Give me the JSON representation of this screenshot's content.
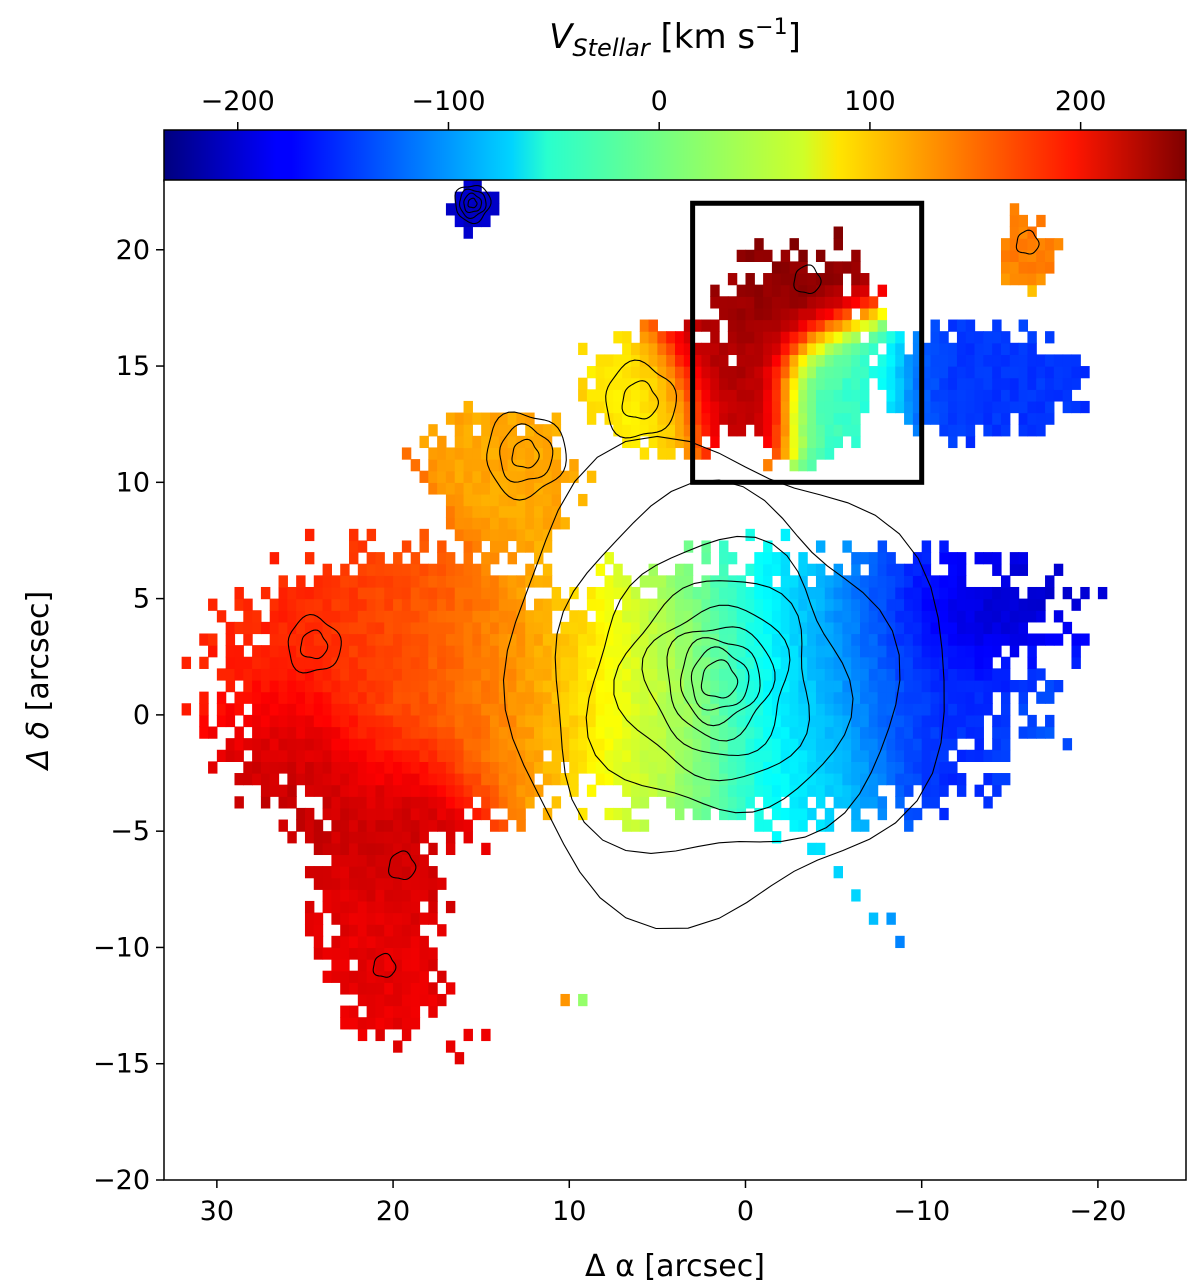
{
  "chart_data": {
    "type": "heatmap",
    "title": "",
    "colorbar": {
      "label_main": "V",
      "label_sub": "Stellar",
      "label_units": " [km s",
      "label_exp": "−1",
      "label_close": "]",
      "range": [
        -235,
        250
      ],
      "ticks": [
        -200,
        -100,
        0,
        100,
        200
      ],
      "tick_labels": [
        "−200",
        "−100",
        "0",
        "100",
        "200"
      ],
      "colormap": "jet",
      "placement": "top"
    },
    "xlabel_main": "Δ α",
    "xlabel_units": " [arcsec]",
    "ylabel_main": "Δ δ",
    "ylabel_units": " [arcsec]",
    "xlim": [
      33,
      -25
    ],
    "ylim": [
      -20,
      23
    ],
    "x_inverted": true,
    "xticks": [
      30,
      20,
      10,
      0,
      -10,
      -20
    ],
    "xtick_labels": [
      "30",
      "20",
      "10",
      "0",
      "−10",
      "−20"
    ],
    "yticks": [
      -20,
      -15,
      -10,
      -5,
      0,
      5,
      10,
      15,
      20
    ],
    "ytick_labels": [
      "−20",
      "−15",
      "−10",
      "−5",
      "0",
      "5",
      "10",
      "15",
      "20"
    ],
    "box": {
      "x": [
        3,
        -10
      ],
      "y": [
        10,
        22
      ]
    },
    "velocity_blobs": [
      {
        "x": 1.5,
        "y": 1.5,
        "sx": 4.0,
        "sy": 3.0,
        "v": 0
      },
      {
        "x": -3,
        "y": 1.5,
        "sx": 3.0,
        "sy": 3.0,
        "v": -90
      },
      {
        "x": -8,
        "y": 2.5,
        "sx": 3.5,
        "sy": 2.5,
        "v": -140
      },
      {
        "x": -13,
        "y": 2.0,
        "sx": 3.0,
        "sy": 3.0,
        "v": -160
      },
      {
        "x": -14,
        "y": 4.0,
        "sx": 3.0,
        "sy": 1.5,
        "v": -225
      },
      {
        "x": -17,
        "y": 0.5,
        "sx": 2.0,
        "sy": 2.0,
        "v": -130
      },
      {
        "x": 6,
        "y": 1.0,
        "sx": 3.0,
        "sy": 2.5,
        "v": 60
      },
      {
        "x": 11,
        "y": 1.5,
        "sx": 3.0,
        "sy": 2.5,
        "v": 110
      },
      {
        "x": 16,
        "y": 1.0,
        "sx": 3.0,
        "sy": 2.5,
        "v": 140
      },
      {
        "x": 21,
        "y": 2.5,
        "sx": 3.0,
        "sy": 2.5,
        "v": 155
      },
      {
        "x": 25,
        "y": 2.5,
        "sx": 2.5,
        "sy": 2.5,
        "v": 175
      },
      {
        "x": 25,
        "y": -1.5,
        "sx": 2.0,
        "sy": 2.0,
        "v": 220
      },
      {
        "x": 19,
        "y": -5.0,
        "sx": 2.0,
        "sy": 2.5,
        "v": 215
      },
      {
        "x": 20,
        "y": -9.5,
        "sx": 2.0,
        "sy": 2.0,
        "v": 200
      },
      {
        "x": 12,
        "y": 11.0,
        "sx": 2.0,
        "sy": 2.0,
        "v": 110
      },
      {
        "x": 6,
        "y": 13.5,
        "sx": 2.0,
        "sy": 1.5,
        "v": 75
      },
      {
        "x": 1,
        "y": 15.5,
        "sx": 2.0,
        "sy": 2.0,
        "v": 230
      },
      {
        "x": -3,
        "y": 18.5,
        "sx": 2.5,
        "sy": 1.5,
        "v": 245
      },
      {
        "x": -6,
        "y": 14.5,
        "sx": 2.0,
        "sy": 1.5,
        "v": -20
      },
      {
        "x": -13,
        "y": 14.5,
        "sx": 3.0,
        "sy": 1.5,
        "v": -150
      },
      {
        "x": -16,
        "y": 20.0,
        "sx": 1.0,
        "sy": 1.0,
        "v": 130
      },
      {
        "x": 15.5,
        "y": 22.0,
        "sx": 0.8,
        "sy": 0.8,
        "v": -200
      }
    ],
    "contour_centers": [
      {
        "x": 1.5,
        "y": 1.5,
        "levels": [
          0.8,
          1.3,
          1.8,
          2.4,
          3.2,
          4.3,
          5.8,
          7.8,
          10.0
        ]
      },
      {
        "x": 24.5,
        "y": 3.0,
        "levels": [
          0.6,
          1.2
        ]
      },
      {
        "x": 12.5,
        "y": 11.2,
        "levels": [
          0.6,
          1.2,
          1.8
        ]
      },
      {
        "x": 6,
        "y": 13.5,
        "levels": [
          0.8,
          1.6
        ]
      },
      {
        "x": -3.5,
        "y": 18.7,
        "levels": [
          0.6
        ]
      },
      {
        "x": -16,
        "y": 20.3,
        "levels": [
          0.5
        ]
      },
      {
        "x": 20.5,
        "y": -10.8,
        "levels": [
          0.5
        ]
      },
      {
        "x": 19.5,
        "y": -6.5,
        "levels": [
          0.6
        ]
      },
      {
        "x": 15.5,
        "y": 22.0,
        "levels": [
          0.2,
          0.4,
          0.6,
          0.8
        ]
      }
    ]
  }
}
